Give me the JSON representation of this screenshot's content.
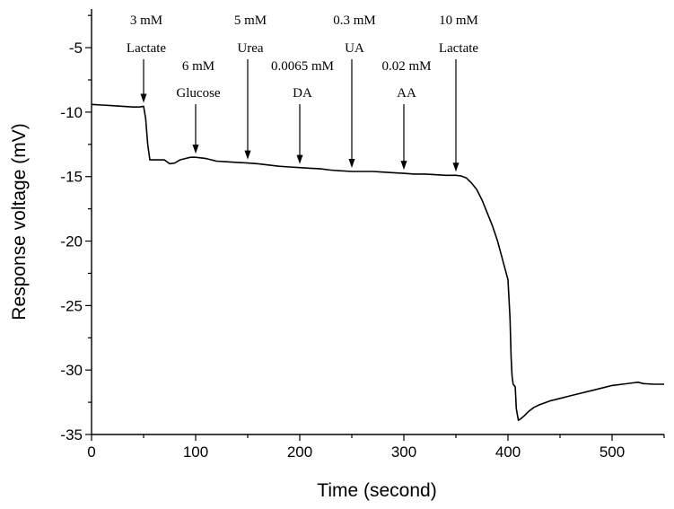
{
  "chart_data": {
    "type": "line",
    "xlabel": "Time (second)",
    "ylabel": "Response voltage (mV)",
    "xlim": [
      0,
      550
    ],
    "ylim": [
      -35,
      -2
    ],
    "x_ticks": [
      0,
      100,
      200,
      300,
      400,
      500
    ],
    "y_ticks": [
      -35,
      -30,
      -25,
      -20,
      -15,
      -10,
      -5
    ],
    "grid": false,
    "series": [
      {
        "color": "#000000",
        "x": [
          0,
          10,
          20,
          30,
          40,
          46,
          50,
          52,
          54,
          56,
          60,
          70,
          75,
          80,
          85,
          90,
          95,
          100,
          110,
          120,
          130,
          140,
          150,
          160,
          170,
          180,
          190,
          200,
          210,
          220,
          230,
          240,
          250,
          260,
          270,
          280,
          290,
          300,
          310,
          320,
          330,
          340,
          350,
          355,
          360,
          365,
          370,
          375,
          380,
          385,
          390,
          395,
          400,
          402,
          403,
          404,
          405,
          406,
          407,
          408,
          410,
          412,
          415,
          420,
          425,
          430,
          440,
          450,
          460,
          470,
          480,
          490,
          500,
          510,
          520,
          525,
          530,
          540,
          550
        ],
        "y": [
          -9.4,
          -9.45,
          -9.5,
          -9.55,
          -9.6,
          -9.6,
          -9.55,
          -10.5,
          -12.5,
          -13.7,
          -13.7,
          -13.7,
          -14.0,
          -13.95,
          -13.7,
          -13.6,
          -13.5,
          -13.5,
          -13.6,
          -13.8,
          -13.85,
          -13.9,
          -13.95,
          -14.0,
          -14.1,
          -14.2,
          -14.25,
          -14.3,
          -14.35,
          -14.4,
          -14.5,
          -14.55,
          -14.6,
          -14.6,
          -14.6,
          -14.65,
          -14.7,
          -14.75,
          -14.8,
          -14.8,
          -14.85,
          -14.9,
          -14.9,
          -14.95,
          -15.1,
          -15.5,
          -16.0,
          -16.8,
          -17.8,
          -18.8,
          -20.0,
          -21.5,
          -23.0,
          -26.0,
          -29.0,
          -30.5,
          -31.1,
          -31.2,
          -31.3,
          -33.0,
          -33.9,
          -33.8,
          -33.6,
          -33.2,
          -32.9,
          -32.7,
          -32.4,
          -32.2,
          -32.0,
          -31.8,
          -31.6,
          -31.4,
          -31.2,
          -31.1,
          -31.0,
          -30.95,
          -31.05,
          -31.1,
          -31.1
        ]
      }
    ],
    "annotations": [
      {
        "x": 50,
        "line1": "3 mM",
        "line2": "Lactate"
      },
      {
        "x": 100,
        "line1": "6 mM",
        "line2": "Glucose"
      },
      {
        "x": 150,
        "line1": "5 mM",
        "line2": "Urea"
      },
      {
        "x": 200,
        "line1": "0.0065 mM",
        "line2": "DA"
      },
      {
        "x": 250,
        "line1": "0.3 mM",
        "line2": "UA"
      },
      {
        "x": 300,
        "line1": "0.02 mM",
        "line2": "AA"
      },
      {
        "x": 350,
        "line1": "10 mM",
        "line2": "Lactate"
      }
    ]
  }
}
